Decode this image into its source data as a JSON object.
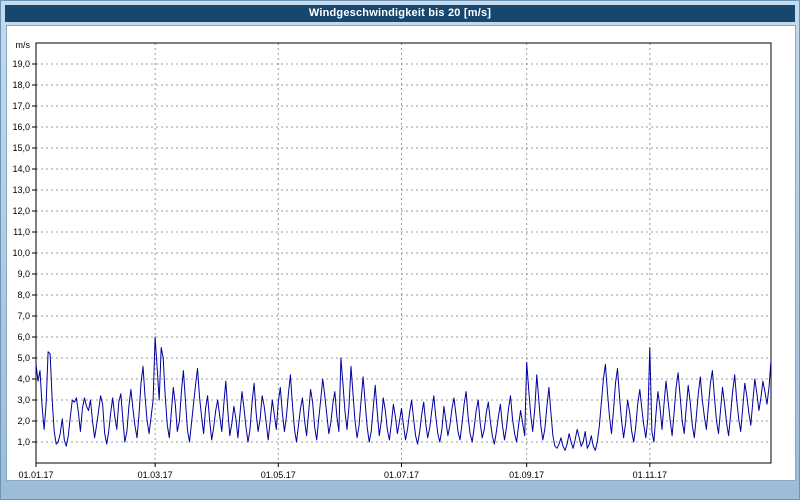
{
  "header": {
    "title": "Windgeschwindigkeit bis 20 [m/s]"
  },
  "colors": {
    "title_bar_bg": "#17466F",
    "title_bar_fg": "#FFFFFF",
    "frame_bg": "#B3CDE4",
    "plot_bg": "#FFFFFF",
    "grid": "#999999",
    "axis": "#000000",
    "line": "#0000A0"
  },
  "chart_data": {
    "type": "line",
    "title": "Windgeschwindigkeit bis 20 [m/s]",
    "xlabel": "",
    "ylabel": "m/s",
    "ylim": [
      0,
      20
    ],
    "x_range_days": [
      0,
      364
    ],
    "grid": true,
    "legend": "none",
    "line_color": "#0000A0",
    "y_ticks": [
      {
        "v": 1,
        "label": "1,0"
      },
      {
        "v": 2,
        "label": "2,0"
      },
      {
        "v": 3,
        "label": "3,0"
      },
      {
        "v": 4,
        "label": "4,0"
      },
      {
        "v": 5,
        "label": "5,0"
      },
      {
        "v": 6,
        "label": "6,0"
      },
      {
        "v": 7,
        "label": "7,0"
      },
      {
        "v": 8,
        "label": "8,0"
      },
      {
        "v": 9,
        "label": "9,0"
      },
      {
        "v": 10,
        "label": "10,0"
      },
      {
        "v": 11,
        "label": "11,0"
      },
      {
        "v": 12,
        "label": "12,0"
      },
      {
        "v": 13,
        "label": "13,0"
      },
      {
        "v": 14,
        "label": "14,0"
      },
      {
        "v": 15,
        "label": "15,0"
      },
      {
        "v": 16,
        "label": "16,0"
      },
      {
        "v": 17,
        "label": "17,0"
      },
      {
        "v": 18,
        "label": "18,0"
      },
      {
        "v": 19,
        "label": "19,0"
      }
    ],
    "x_ticks": [
      {
        "day": 0,
        "label": "01.01.17"
      },
      {
        "day": 59,
        "label": "01.03.17"
      },
      {
        "day": 120,
        "label": "01.05.17"
      },
      {
        "day": 181,
        "label": "01.07.17"
      },
      {
        "day": 243,
        "label": "01.09.17"
      },
      {
        "day": 304,
        "label": "01.11.17"
      }
    ],
    "series_name": "Windgeschwindigkeit",
    "unit": "m/s",
    "values": [
      4.7,
      3.9,
      4.4,
      2.7,
      1.6,
      2.8,
      5.3,
      5.2,
      3.0,
      1.5,
      0.9,
      1.0,
      1.4,
      2.1,
      1.1,
      0.8,
      1.3,
      2.2,
      3.0,
      2.9,
      3.1,
      2.4,
      1.5,
      2.6,
      3.1,
      2.7,
      2.5,
      3.0,
      2.0,
      1.2,
      1.8,
      2.5,
      3.2,
      2.8,
      1.4,
      0.9,
      1.5,
      2.4,
      3.1,
      2.2,
      1.6,
      2.9,
      3.3,
      2.1,
      1.0,
      1.5,
      2.7,
      3.5,
      2.6,
      1.8,
      1.2,
      2.3,
      3.8,
      4.6,
      3.2,
      2.0,
      1.4,
      2.2,
      3.0,
      6.0,
      4.5,
      3.0,
      5.5,
      5.0,
      3.2,
      1.8,
      1.2,
      2.4,
      3.6,
      2.8,
      1.5,
      2.0,
      3.4,
      4.4,
      3.0,
      1.6,
      1.0,
      1.9,
      2.8,
      3.7,
      4.5,
      3.1,
      2.2,
      1.4,
      2.6,
      3.2,
      2.0,
      1.1,
      1.7,
      2.5,
      3.0,
      2.2,
      1.5,
      2.8,
      3.9,
      2.5,
      1.3,
      1.9,
      2.7,
      2.1,
      1.2,
      2.3,
      3.4,
      2.6,
      1.7,
      1.0,
      1.6,
      2.9,
      3.8,
      2.4,
      1.5,
      2.1,
      3.2,
      2.7,
      1.9,
      1.1,
      2.0,
      3.0,
      2.3,
      1.6,
      2.9,
      3.6,
      2.4,
      1.5,
      2.2,
      3.3,
      4.2,
      2.8,
      1.6,
      1.0,
      1.8,
      2.6,
      3.1,
      2.0,
      1.3,
      2.4,
      3.5,
      2.9,
      1.7,
      1.1,
      2.1,
      3.0,
      4.0,
      3.2,
      2.3,
      1.4,
      1.9,
      2.8,
      3.4,
      2.2,
      1.5,
      5.0,
      3.8,
      2.5,
      1.6,
      2.7,
      4.6,
      3.3,
      2.0,
      1.2,
      1.8,
      3.0,
      4.1,
      2.9,
      1.7,
      1.0,
      1.5,
      2.6,
      3.7,
      2.4,
      1.3,
      2.0,
      3.1,
      2.5,
      1.6,
      1.1,
      1.9,
      2.8,
      2.2,
      1.4,
      2.0,
      2.6,
      1.8,
      1.1,
      1.6,
      2.4,
      3.0,
      2.1,
      1.3,
      0.9,
      1.5,
      2.3,
      2.9,
      1.9,
      1.2,
      1.7,
      2.5,
      3.2,
      2.2,
      1.4,
      1.0,
      1.6,
      2.7,
      2.0,
      1.3,
      1.8,
      2.6,
      3.1,
      2.3,
      1.5,
      1.1,
      1.9,
      2.8,
      3.4,
      2.2,
      1.4,
      1.0,
      1.7,
      2.5,
      3.0,
      1.9,
      1.2,
      1.6,
      2.4,
      2.9,
      2.0,
      1.3,
      0.9,
      1.5,
      2.2,
      2.8,
      1.8,
      1.1,
      1.7,
      2.6,
      3.2,
      2.1,
      1.4,
      1.0,
      1.8,
      2.5,
      1.9,
      1.3,
      4.8,
      3.5,
      2.3,
      1.5,
      2.6,
      4.2,
      3.0,
      1.8,
      1.1,
      1.6,
      2.7,
      3.6,
      2.4,
      1.3,
      0.8,
      0.7,
      0.9,
      1.2,
      0.8,
      0.6,
      0.9,
      1.4,
      1.0,
      0.7,
      1.1,
      1.6,
      1.2,
      0.8,
      1.0,
      1.5,
      0.7,
      0.9,
      1.3,
      0.8,
      0.6,
      1.0,
      1.8,
      2.9,
      4.0,
      4.7,
      3.4,
      2.2,
      1.4,
      2.5,
      3.8,
      4.5,
      3.1,
      2.0,
      1.2,
      1.9,
      3.0,
      2.4,
      1.5,
      1.0,
      1.7,
      2.8,
      3.5,
      2.6,
      1.8,
      1.2,
      2.1,
      5.5,
      1.5,
      1.0,
      2.3,
      3.4,
      2.7,
      1.6,
      2.8,
      3.9,
      3.0,
      2.1,
      1.3,
      2.4,
      3.6,
      4.3,
      3.2,
      2.0,
      1.4,
      2.6,
      3.7,
      2.9,
      1.8,
      1.2,
      2.2,
      3.3,
      4.1,
      3.0,
      2.2,
      1.6,
      2.7,
      3.8,
      4.4,
      3.1,
      2.0,
      1.4,
      2.5,
      3.6,
      2.8,
      1.9,
      1.3,
      2.3,
      3.4,
      4.2,
      3.0,
      2.1,
      1.5,
      2.6,
      3.8,
      3.2,
      2.4,
      1.8,
      2.9,
      4.0,
      3.3,
      2.5,
      3.1,
      3.9,
      3.4,
      2.8,
      3.6,
      4.9
    ]
  }
}
